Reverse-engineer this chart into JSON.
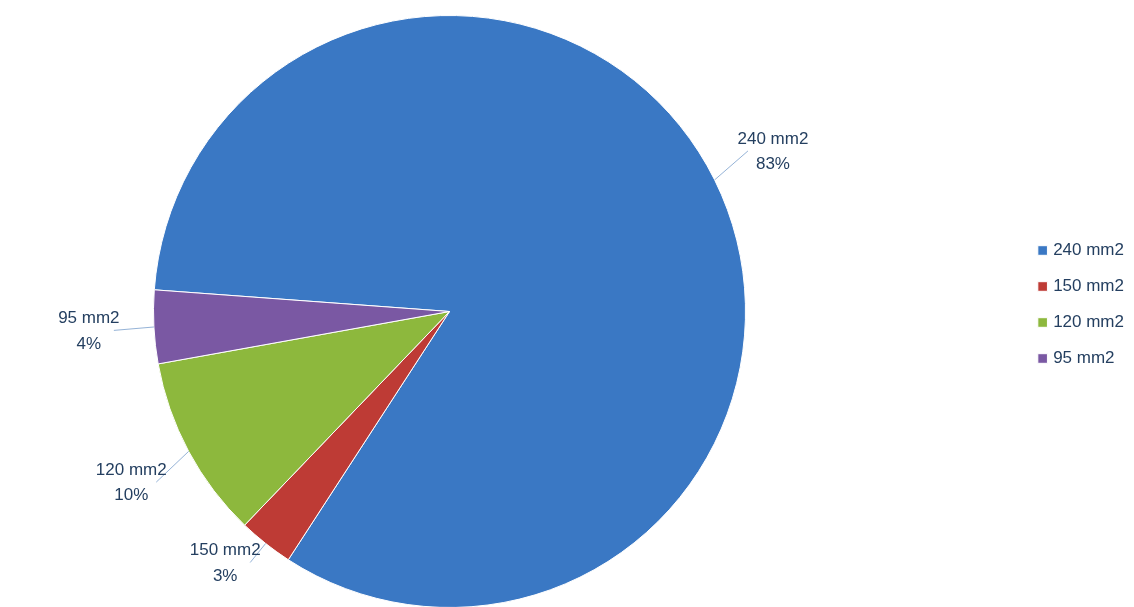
{
  "chart_data": {
    "type": "pie",
    "categories": [
      "240 mm2",
      "150 mm2",
      "120 mm2",
      "95 mm2"
    ],
    "values": [
      83,
      3,
      10,
      4
    ],
    "colors": [
      "#3a78c4",
      "#be3b35",
      "#8db83d",
      "#7a58a3"
    ],
    "value_labels": [
      "83%",
      "3%",
      "10%",
      "4%"
    ],
    "legend": "right"
  }
}
